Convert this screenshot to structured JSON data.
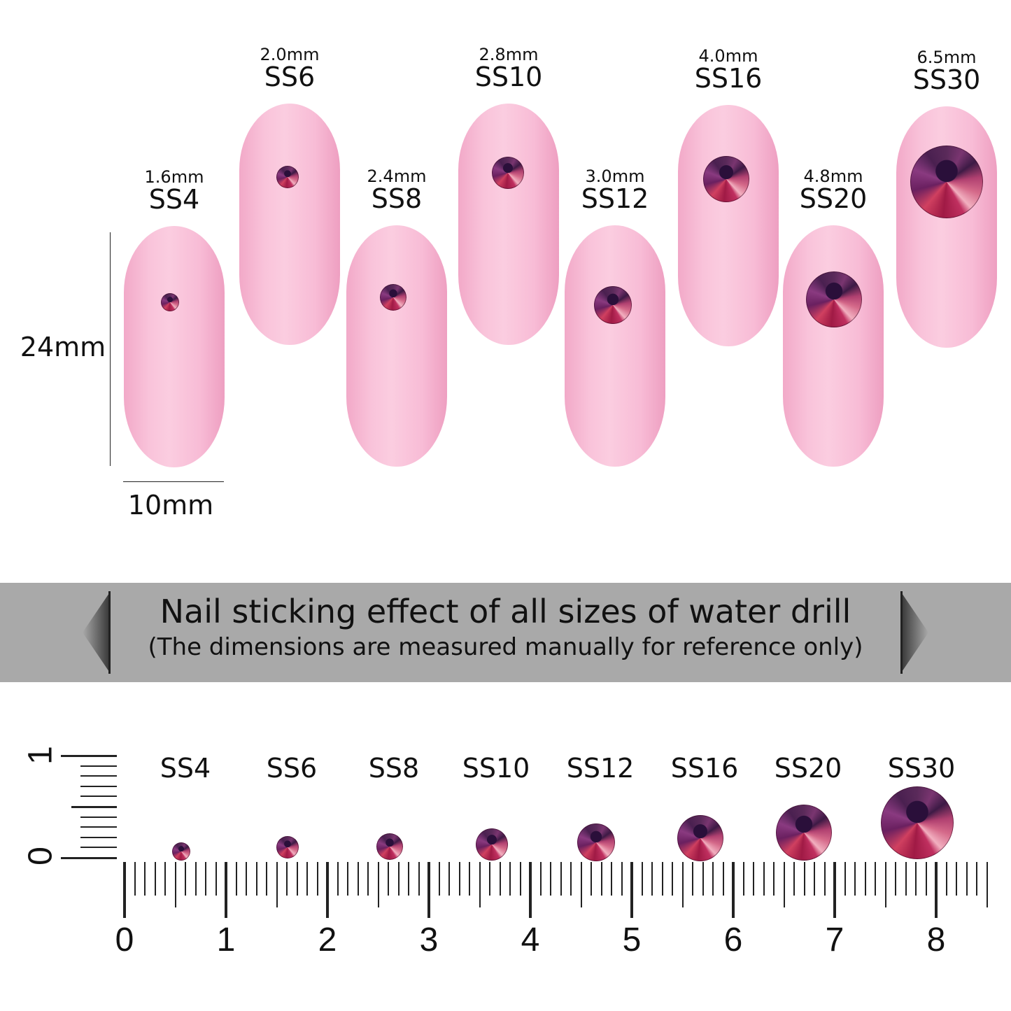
{
  "nails": [
    {
      "size": "SS4",
      "mm": "1.6mm"
    },
    {
      "size": "SS6",
      "mm": "2.0mm"
    },
    {
      "size": "SS8",
      "mm": "2.4mm"
    },
    {
      "size": "SS10",
      "mm": "2.8mm"
    },
    {
      "size": "SS12",
      "mm": "3.0mm"
    },
    {
      "size": "SS16",
      "mm": "4.0mm"
    },
    {
      "size": "SS20",
      "mm": "4.8mm"
    },
    {
      "size": "SS30",
      "mm": "6.5mm"
    }
  ],
  "dimensions": {
    "height": "24mm",
    "width": "10mm"
  },
  "banner": {
    "title": "Nail sticking effect of all sizes of water drill",
    "subtitle": "(The dimensions are measured manually for reference only)"
  },
  "ruler": {
    "horizontal_labels": [
      "0",
      "1",
      "2",
      "3",
      "4",
      "5",
      "6",
      "7",
      "8"
    ],
    "vertical_labels": [
      "0",
      "1"
    ]
  },
  "colors": {
    "nail": "#f9c3da",
    "banner": "#a9a9a9",
    "gem": "#8a2a5a"
  }
}
